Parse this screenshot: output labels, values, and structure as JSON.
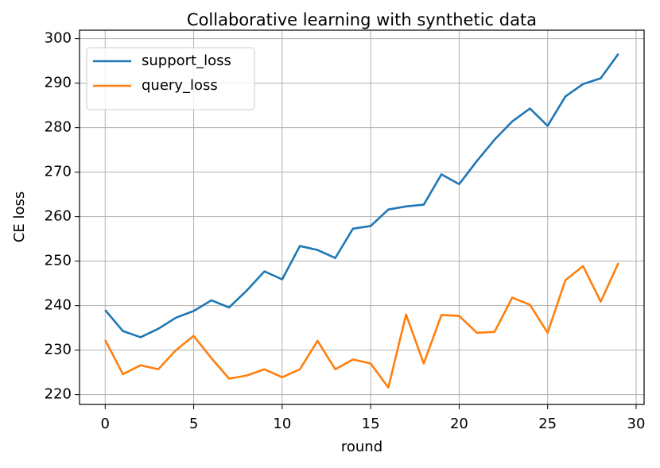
{
  "chart_data": {
    "type": "line",
    "title": "Collaborative learning with synthetic data",
    "xlabel": "round",
    "ylabel": "CE loss",
    "x": [
      0,
      1,
      2,
      3,
      4,
      5,
      6,
      7,
      8,
      9,
      10,
      11,
      12,
      13,
      14,
      15,
      16,
      17,
      18,
      19,
      20,
      21,
      22,
      23,
      24,
      25,
      26,
      27,
      28,
      29
    ],
    "series": [
      {
        "name": "support_loss",
        "color": "#1f77b4",
        "values": [
          239.0,
          234.3,
          232.9,
          234.8,
          237.3,
          238.8,
          241.2,
          239.6,
          243.4,
          247.7,
          245.9,
          253.4,
          252.5,
          250.7,
          257.3,
          257.9,
          261.6,
          262.3,
          262.7,
          269.5,
          267.3,
          272.5,
          277.3,
          281.4,
          284.3,
          280.4,
          287.0,
          289.8,
          291.1,
          296.6
        ]
      },
      {
        "name": "query_loss",
        "color": "#ff7f0e",
        "values": [
          232.3,
          224.6,
          226.6,
          225.7,
          230.0,
          233.2,
          228.2,
          223.6,
          224.3,
          225.7,
          223.9,
          225.7,
          232.1,
          225.7,
          227.9,
          227.0,
          221.6,
          238.0,
          227.0,
          237.9,
          237.7,
          233.9,
          234.1,
          241.8,
          240.2,
          233.9,
          245.7,
          248.9,
          240.9,
          249.6
        ]
      }
    ],
    "xlim": [
      -1.45,
      30.45
    ],
    "xticks": [
      0,
      5,
      10,
      15,
      20,
      25,
      30
    ],
    "ylim": [
      217.8,
      301.9
    ],
    "yticks": [
      220,
      230,
      240,
      250,
      260,
      270,
      280,
      290,
      300
    ],
    "grid": true,
    "legend": "upper-left"
  }
}
